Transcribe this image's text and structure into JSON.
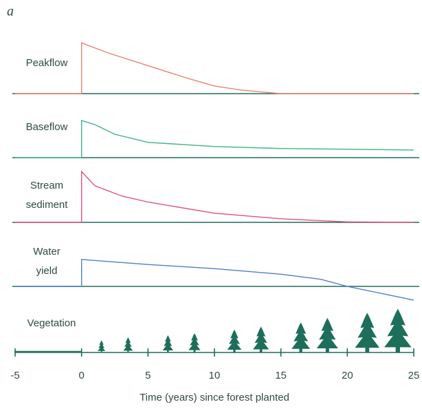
{
  "panel_label": "a",
  "chart_data": [
    {
      "type": "line",
      "label_lines": [
        "Peakflow"
      ],
      "color": "#e8826f",
      "ylim": [
        -0.3,
        1
      ],
      "x": [
        -5,
        0,
        0,
        2,
        5,
        8,
        10,
        12,
        15,
        25
      ],
      "values": [
        0,
        0,
        1,
        0.8,
        0.55,
        0.3,
        0.15,
        0.07,
        0,
        0
      ]
    },
    {
      "type": "line",
      "label_lines": [
        "Baseflow"
      ],
      "color": "#3bb38a",
      "ylim": [
        -0.3,
        1
      ],
      "x": [
        -5,
        0,
        0,
        1,
        2.5,
        5,
        10,
        15,
        25
      ],
      "values": [
        0,
        0,
        0.73,
        0.65,
        0.46,
        0.3,
        0.22,
        0.18,
        0.15
      ]
    },
    {
      "type": "line",
      "label_lines": [
        "Stream",
        "sediment"
      ],
      "color": "#e2507f",
      "ylim": [
        -0.3,
        1
      ],
      "x": [
        -5,
        0,
        0,
        1,
        3,
        5,
        10,
        15,
        20,
        25
      ],
      "values": [
        0,
        0,
        1,
        0.72,
        0.52,
        0.4,
        0.18,
        0.07,
        0.01,
        0
      ]
    },
    {
      "type": "line",
      "label_lines": [
        "Water",
        "yield"
      ],
      "color": "#4f7fc6",
      "ylim": [
        -0.3,
        1
      ],
      "x": [
        -5,
        0,
        0,
        5,
        10,
        15,
        18,
        20,
        25
      ],
      "values": [
        0,
        0,
        0.53,
        0.43,
        0.35,
        0.24,
        0.14,
        0,
        -0.27
      ]
    },
    {
      "type": "tree",
      "label_lines": [
        "Vegetation"
      ],
      "color": "#1d6e5a",
      "ylim": [
        -0.3,
        1
      ],
      "x": [
        1.5,
        3.5,
        6.5,
        8.5,
        11.5,
        13.5,
        16.5,
        18.5,
        21.5,
        23.8
      ],
      "values": [
        0.24,
        0.3,
        0.34,
        0.38,
        0.45,
        0.51,
        0.59,
        0.68,
        0.78,
        0.86
      ],
      "xlim": [
        -5,
        25
      ],
      "xticks": [
        -5,
        0,
        5,
        10,
        15,
        20,
        25
      ],
      "xlabel": "Time (years) since forest planted"
    }
  ]
}
